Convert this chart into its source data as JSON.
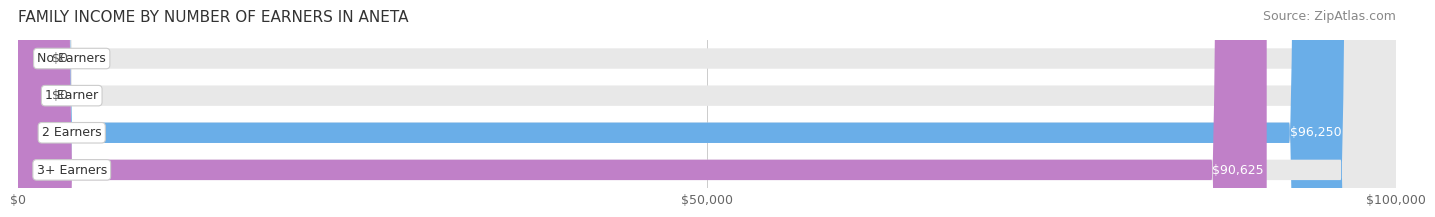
{
  "title": "FAMILY INCOME BY NUMBER OF EARNERS IN ANETA",
  "source": "Source: ZipAtlas.com",
  "categories": [
    "No Earners",
    "1 Earner",
    "2 Earners",
    "3+ Earners"
  ],
  "values": [
    0,
    0,
    96250,
    90625
  ],
  "bar_colors": [
    "#f0c080",
    "#e88080",
    "#6aaee8",
    "#c080c8"
  ],
  "label_colors": [
    "#888888",
    "#888888",
    "#ffffff",
    "#ffffff"
  ],
  "value_labels": [
    "$0",
    "$0",
    "$96,250",
    "$90,625"
  ],
  "xlim": [
    0,
    100000
  ],
  "xticks": [
    0,
    50000,
    100000
  ],
  "xtick_labels": [
    "$0",
    "$50,000",
    "$100,000"
  ],
  "background_color": "#f0f0f0",
  "bar_background": "#e8e8e8",
  "title_fontsize": 11,
  "source_fontsize": 9,
  "tick_fontsize": 9,
  "label_fontsize": 9,
  "bar_height": 0.55,
  "fig_width": 14.06,
  "fig_height": 2.32
}
